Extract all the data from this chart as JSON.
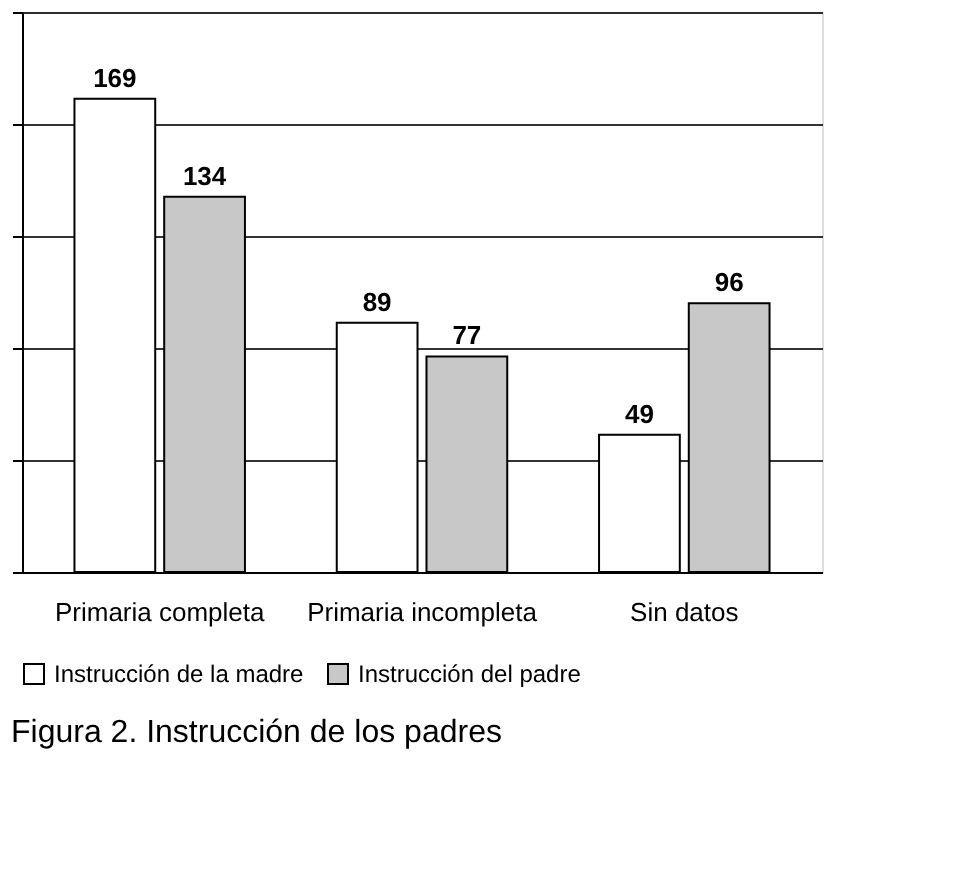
{
  "chart_data": {
    "type": "bar",
    "title": "Figura 2. Instrucción de los padres",
    "categories": [
      "Primaria completa",
      "Primaria incompleta",
      "Sin datos"
    ],
    "series": [
      {
        "name": "Instrucción de la madre",
        "color": "#ffffff",
        "values": [
          169,
          89,
          49
        ]
      },
      {
        "name": "Instrucción del padre",
        "color": "#c8c8c8",
        "values": [
          134,
          77,
          96
        ]
      }
    ],
    "ylim": [
      0,
      200
    ],
    "yticks": [
      {
        "value": 0,
        "label": null
      },
      {
        "value": 40,
        "label": null
      },
      {
        "value": 80,
        "label": null
      },
      {
        "value": 120,
        "label": null
      },
      {
        "value": 160,
        "label": null
      },
      {
        "value": 200,
        "label": null
      }
    ],
    "tick_labels": "x",
    "grid": "y",
    "legend": "bottom",
    "data_labels": true
  }
}
